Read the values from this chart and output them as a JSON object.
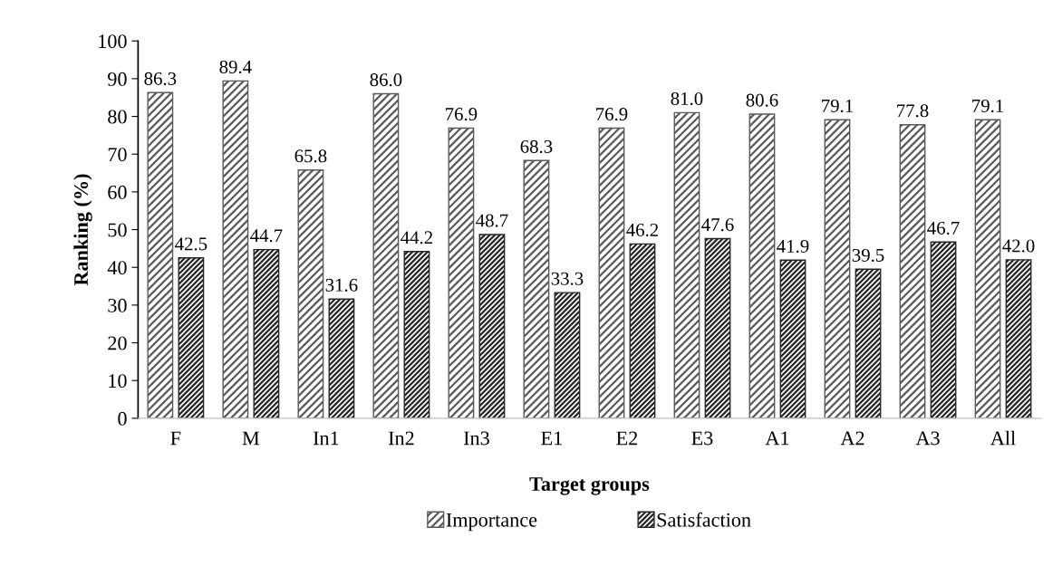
{
  "chart_data": {
    "type": "bar",
    "xlabel": "Target groups",
    "ylabel": "Ranking (%)",
    "categories": [
      "F",
      "M",
      "In1",
      "In2",
      "In3",
      "E1",
      "E2",
      "E3",
      "A1",
      "A2",
      "A3",
      "All"
    ],
    "series": [
      {
        "name": "Importance",
        "color": "#595959",
        "values": [
          86.3,
          89.4,
          65.8,
          86.0,
          76.9,
          68.3,
          76.9,
          81.0,
          80.6,
          79.1,
          77.8,
          79.1
        ],
        "value_labels": [
          "86.3",
          "89.4",
          "65.8",
          "86.0",
          "76.9",
          "68.3",
          "76.9",
          "81.0",
          "80.6",
          "79.1",
          "77.8",
          "79.1"
        ]
      },
      {
        "name": "Satisfaction",
        "color": "#262626",
        "values": [
          42.5,
          44.7,
          31.6,
          44.2,
          48.7,
          33.3,
          46.2,
          47.6,
          41.9,
          39.5,
          46.7,
          42.0
        ],
        "value_labels": [
          "42.5",
          "44.7",
          "31.6",
          "44.2",
          "48.7",
          "33.3",
          "46.2",
          "47.6",
          "41.9",
          "39.5",
          "46.7",
          "42.0"
        ]
      }
    ],
    "ylim": [
      0,
      100
    ],
    "yticks": [
      0,
      10,
      20,
      30,
      40,
      50,
      60,
      70,
      80,
      90,
      100
    ],
    "grid": false,
    "legend": "bottom"
  }
}
